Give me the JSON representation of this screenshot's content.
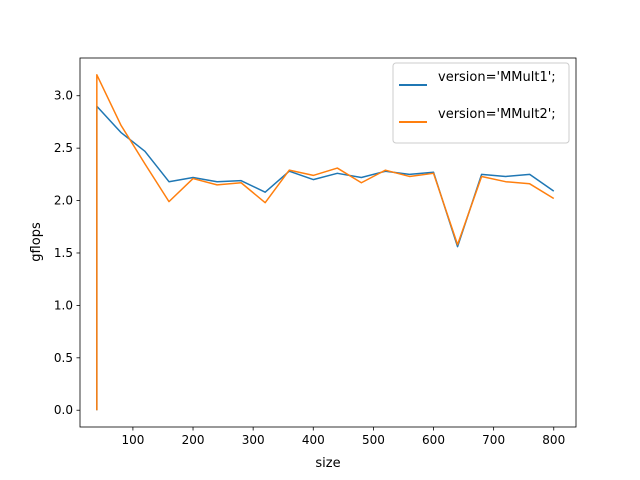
{
  "chart_data": {
    "type": "line",
    "xlabel": "size",
    "ylabel": "gflops",
    "xlim": [
      12,
      837
    ],
    "ylim": [
      -0.16,
      3.36
    ],
    "xticks": [
      100,
      200,
      300,
      400,
      500,
      600,
      700,
      800
    ],
    "xtick_labels": [
      "100",
      "200",
      "300",
      "400",
      "500",
      "600",
      "700",
      "800"
    ],
    "yticks": [
      0.0,
      0.5,
      1.0,
      1.5,
      2.0,
      2.5,
      3.0
    ],
    "ytick_labels": [
      "0.0",
      "0.5",
      "1.0",
      "1.5",
      "2.0",
      "2.5",
      "3.0"
    ],
    "grid": false,
    "legend_position": "top-right",
    "series": [
      {
        "name": "version='MMult1';",
        "color": "#1f77b4",
        "x": [
          40,
          40,
          80,
          120,
          160,
          200,
          240,
          280,
          320,
          360,
          400,
          440,
          480,
          520,
          560,
          600,
          640,
          680,
          720,
          760,
          800
        ],
        "y": [
          0.0,
          2.9,
          2.65,
          2.47,
          2.18,
          2.22,
          2.18,
          2.19,
          2.08,
          2.28,
          2.2,
          2.26,
          2.22,
          2.28,
          2.25,
          2.27,
          1.56,
          2.25,
          2.23,
          2.25,
          2.09
        ]
      },
      {
        "name": "version='MMult2';",
        "color": "#ff7f0e",
        "x": [
          40,
          40,
          80,
          120,
          160,
          200,
          240,
          280,
          320,
          360,
          400,
          440,
          480,
          520,
          560,
          600,
          640,
          680,
          720,
          760,
          800
        ],
        "y": [
          0.0,
          3.2,
          2.72,
          2.35,
          1.99,
          2.21,
          2.15,
          2.17,
          1.98,
          2.29,
          2.24,
          2.31,
          2.17,
          2.29,
          2.23,
          2.26,
          1.58,
          2.23,
          2.18,
          2.16,
          2.02
        ]
      }
    ]
  }
}
